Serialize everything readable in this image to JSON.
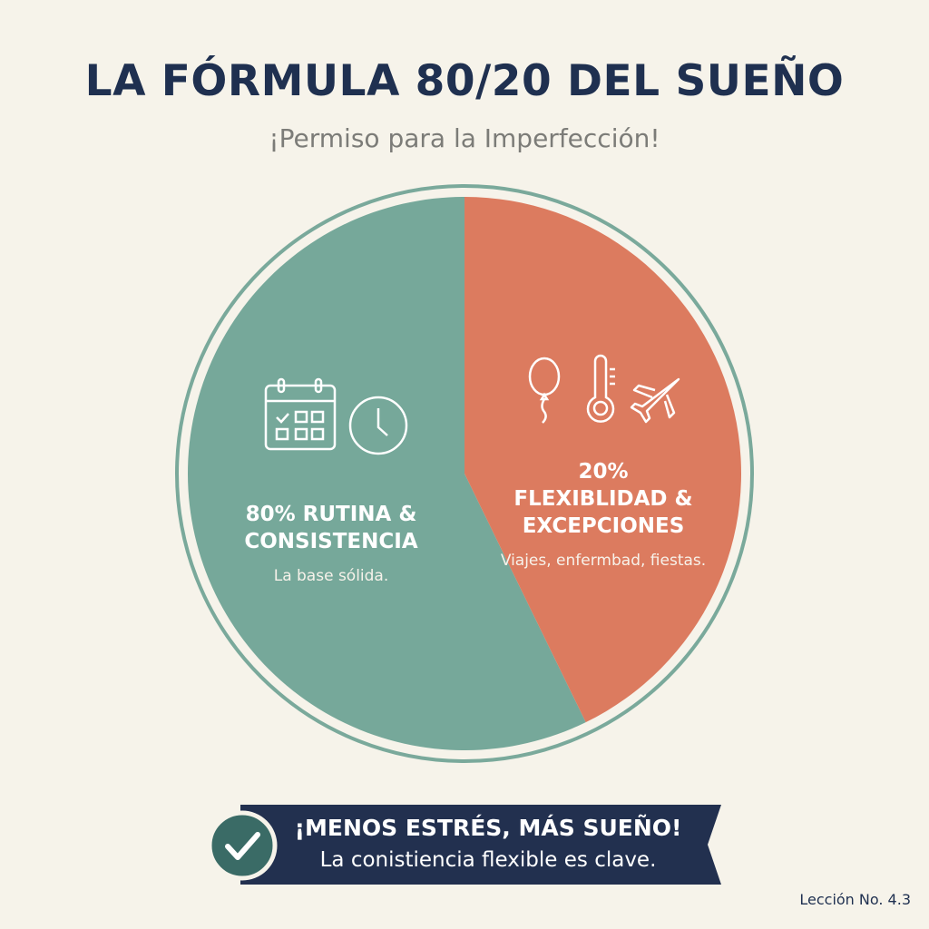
{
  "header": {
    "title": "LA FÓRMULA 80/20 DEL SUEÑO",
    "subtitle": "¡Permiso para la Imperfección!"
  },
  "chart_data": {
    "type": "pie",
    "slices": [
      {
        "name": "80% RUTINA & CONSISTENCIA",
        "value": 80,
        "description": "La base sólida.",
        "color": "#76a89a",
        "icons": [
          "calendar-icon",
          "clock-icon"
        ]
      },
      {
        "name": "FLEXIBLIDAD & EXCEPCIONES",
        "percent_label": "20%",
        "value": 20,
        "description": "Viajes, enfermbad, fiestas.",
        "color": "#dc7b5f",
        "icons": [
          "balloon-icon",
          "thermometer-icon",
          "airplane-icon"
        ]
      }
    ]
  },
  "banner": {
    "title": "¡MENOS ESTRÉS, MÁS SUEÑO!",
    "text": "La conistiencia flexible es clave.",
    "icon": "check-icon",
    "color": "#22304f"
  },
  "footer": {
    "lesson": "Lección No. 4.3"
  }
}
